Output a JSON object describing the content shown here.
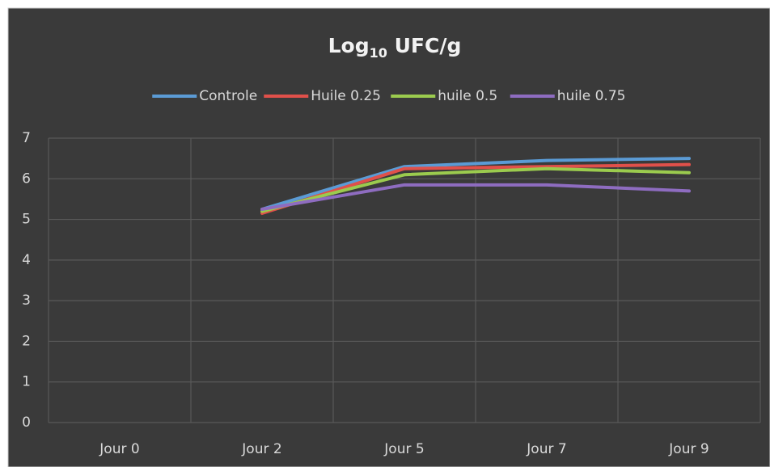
{
  "chart_data": {
    "type": "line",
    "title": {
      "base": "Log",
      "subscript": "10",
      "rest": " UFC/g"
    },
    "categories": [
      "Jour 0",
      "Jour 2",
      "Jour 5",
      "Jour 7",
      "Jour 9"
    ],
    "series": [
      {
        "name": "Controle",
        "color": "#5b9bd5",
        "values": [
          null,
          5.25,
          6.3,
          6.45,
          6.5
        ]
      },
      {
        "name": "Huile 0.25",
        "color": "#e0504a",
        "values": [
          null,
          5.15,
          6.25,
          6.3,
          6.35
        ]
      },
      {
        "name": "huile 0.5",
        "color": "#9bcb4e",
        "values": [
          null,
          5.2,
          6.1,
          6.25,
          6.15
        ]
      },
      {
        "name": "huile 0.75",
        "color": "#8e6cc0",
        "values": [
          null,
          5.25,
          5.85,
          5.85,
          5.7
        ]
      }
    ],
    "ylim": [
      0,
      7
    ],
    "yticks": [
      0,
      1,
      2,
      3,
      4,
      5,
      6,
      7
    ],
    "grid": true,
    "legend": "top"
  }
}
